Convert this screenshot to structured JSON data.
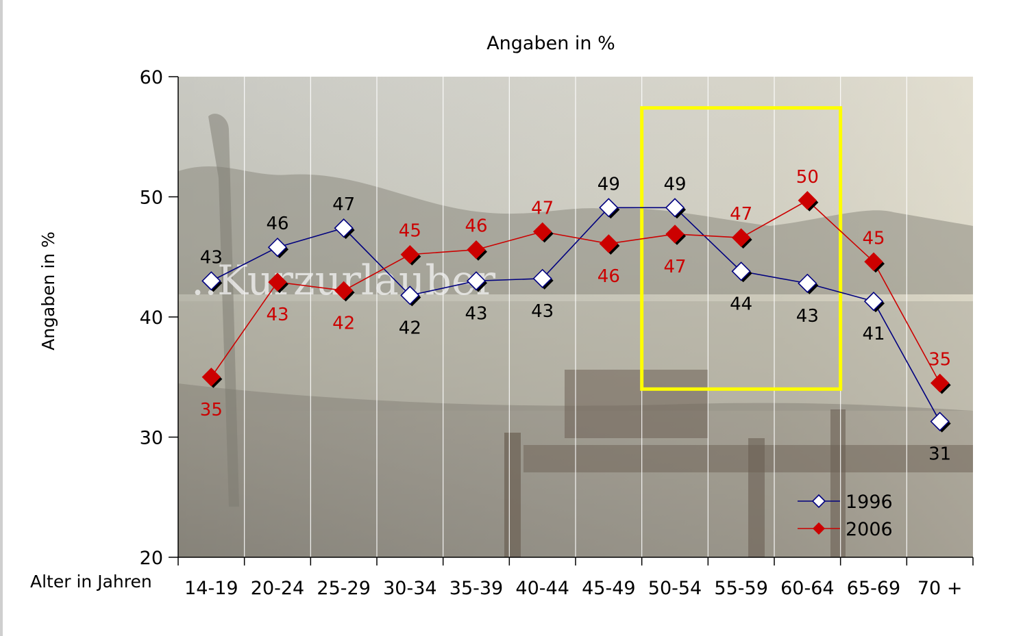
{
  "chart_data": {
    "type": "line",
    "title": "Angaben in %",
    "ylabel": "Angaben in %",
    "xlabel": "Alter in Jahren",
    "categories": [
      "14-19",
      "20-24",
      "25-29",
      "30-34",
      "35-39",
      "40-44",
      "45-49",
      "50-54",
      "55-59",
      "60-64",
      "65-69",
      "70 +"
    ],
    "ylim": [
      20,
      60
    ],
    "yticks": [
      20,
      30,
      40,
      50,
      60
    ],
    "grid": "vertical",
    "legend_placement": "bottom-right",
    "watermark": "..Kurzurlauber",
    "highlight": {
      "from_category": "50-54",
      "to_category": "60-64",
      "color": "#ffff00"
    },
    "series": [
      {
        "name": "1996",
        "color": "#00007f",
        "marker": "open-diamond",
        "values": [
          43.0,
          45.8,
          47.4,
          41.8,
          43.0,
          43.2,
          49.1,
          49.1,
          43.8,
          42.8,
          41.3,
          31.3
        ],
        "labels": [
          "43",
          "46",
          "47",
          "42",
          "43",
          "43",
          "49",
          "49",
          "44",
          "43",
          "41",
          "31"
        ],
        "label_color": "#000000"
      },
      {
        "name": "2006",
        "color": "#cc0000",
        "marker": "filled-diamond",
        "values": [
          35.0,
          42.9,
          42.2,
          45.2,
          45.6,
          47.1,
          46.1,
          46.9,
          46.6,
          49.7,
          44.6,
          34.5
        ],
        "labels": [
          "35",
          "43",
          "42",
          "45",
          "46",
          "47",
          "46",
          "47",
          "47",
          "50",
          "45",
          "35"
        ],
        "label_color": "#cc0000"
      }
    ]
  }
}
